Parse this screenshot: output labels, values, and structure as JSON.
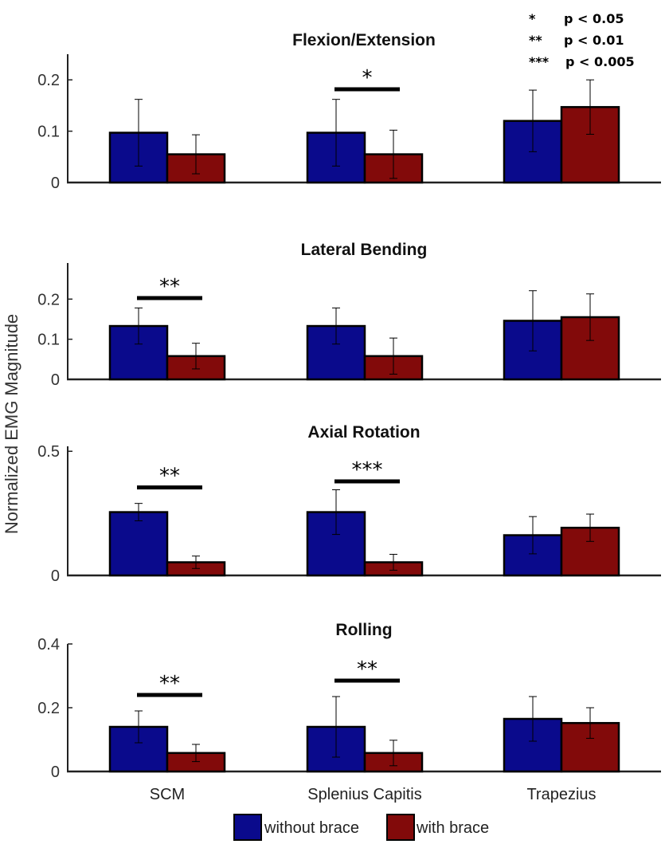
{
  "chart_data": {
    "type": "bar",
    "ylabel": "Normalized EMG Magnitude",
    "categories": [
      "SCM",
      "Splenius Capitis",
      "Trapezius"
    ],
    "series_names": [
      "without brace",
      "with brace"
    ],
    "colors": {
      "without brace": "#0a0a8c",
      "with brace": "#820a0a"
    },
    "panels": [
      {
        "title": "Flexion/Extension",
        "ylim": [
          0,
          0.25
        ],
        "yticks": [
          "0",
          "0.1",
          "0.2"
        ],
        "ytick_values": [
          0,
          0.1,
          0.2
        ],
        "series": [
          {
            "name": "without brace",
            "values": [
              0.097,
              0.097,
              0.12
            ],
            "errors": [
              0.065,
              0.065,
              0.06
            ]
          },
          {
            "name": "with brace",
            "values": [
              0.055,
              0.055,
              0.147
            ],
            "errors": [
              0.038,
              0.047,
              0.053
            ]
          }
        ],
        "significance": [
          {
            "category": "Splenius Capitis",
            "label": "*"
          }
        ]
      },
      {
        "title": "Lateral Bending",
        "ylim": [
          0,
          0.29
        ],
        "yticks": [
          "0",
          "0.1",
          "0.2"
        ],
        "ytick_values": [
          0,
          0.1,
          0.2
        ],
        "series": [
          {
            "name": "without brace",
            "values": [
              0.133,
              0.133,
              0.146
            ],
            "errors": [
              0.045,
              0.045,
              0.075
            ]
          },
          {
            "name": "with brace",
            "values": [
              0.058,
              0.058,
              0.155
            ],
            "errors": [
              0.032,
              0.045,
              0.058
            ]
          }
        ],
        "significance": [
          {
            "category": "SCM",
            "label": "**"
          }
        ]
      },
      {
        "title": "Axial Rotation",
        "ylim": [
          0,
          0.52
        ],
        "yticks": [
          "0",
          "0.5"
        ],
        "ytick_values": [
          0,
          0.5
        ],
        "series": [
          {
            "name": "without brace",
            "values": [
              0.255,
              0.255,
              0.162
            ],
            "errors": [
              0.035,
              0.09,
              0.075
            ]
          },
          {
            "name": "with brace",
            "values": [
              0.053,
              0.053,
              0.192
            ],
            "errors": [
              0.025,
              0.032,
              0.055
            ]
          }
        ],
        "significance": [
          {
            "category": "SCM",
            "label": "**"
          },
          {
            "category": "Splenius Capitis",
            "label": "***"
          }
        ]
      },
      {
        "title": "Rolling",
        "ylim": [
          0,
          0.4
        ],
        "yticks": [
          "0",
          "0.2",
          "0.4"
        ],
        "ytick_values": [
          0,
          0.2,
          0.4
        ],
        "series": [
          {
            "name": "without brace",
            "values": [
              0.14,
              0.14,
              0.165
            ],
            "errors": [
              0.05,
              0.095,
              0.07
            ]
          },
          {
            "name": "with brace",
            "values": [
              0.058,
              0.058,
              0.152
            ],
            "errors": [
              0.027,
              0.04,
              0.048
            ]
          }
        ],
        "significance": [
          {
            "category": "SCM",
            "label": "**"
          },
          {
            "category": "Splenius Capitis",
            "label": "**"
          }
        ]
      }
    ],
    "significance_legend": [
      {
        "stars": "*",
        "text": "p < 0.05"
      },
      {
        "stars": "**",
        "text": "p < 0.01"
      },
      {
        "stars": "***",
        "text": "p < 0.005"
      }
    ]
  }
}
